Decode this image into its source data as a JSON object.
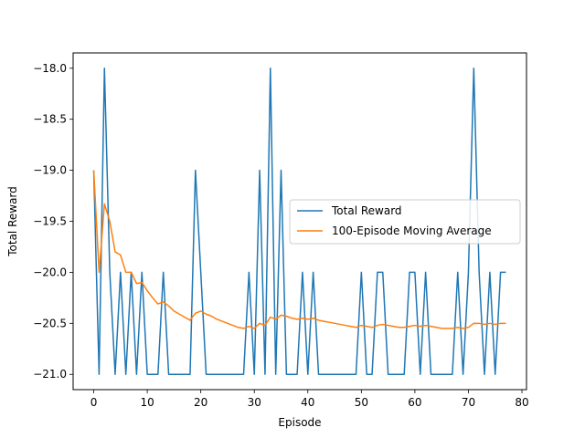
{
  "chart_data": {
    "type": "line",
    "xlabel": "Episode",
    "ylabel": "Total Reward",
    "xlim": [
      -3.85,
      80.85
    ],
    "ylim": [
      -21.15,
      -17.85
    ],
    "xticks": [
      0,
      10,
      20,
      30,
      40,
      50,
      60,
      70,
      80
    ],
    "yticks": [
      -21.0,
      -20.5,
      -20.0,
      -19.5,
      -19.0,
      -18.5,
      -18.0
    ],
    "ytick_labels": [
      "−21.0",
      "−20.5",
      "−20.0",
      "−19.5",
      "−19.0",
      "−18.5",
      "−18.0"
    ],
    "grid": false,
    "legend_position": "center-right",
    "series": [
      {
        "name": "Total Reward",
        "color": "#1f77b4",
        "x": [
          0,
          1,
          2,
          3,
          4,
          5,
          6,
          7,
          8,
          9,
          10,
          11,
          12,
          13,
          14,
          15,
          16,
          17,
          18,
          19,
          20,
          21,
          22,
          23,
          24,
          25,
          26,
          27,
          28,
          29,
          30,
          31,
          32,
          33,
          34,
          35,
          36,
          37,
          38,
          39,
          40,
          41,
          42,
          43,
          44,
          45,
          46,
          47,
          48,
          49,
          50,
          51,
          52,
          53,
          54,
          55,
          56,
          57,
          58,
          59,
          60,
          61,
          62,
          63,
          64,
          65,
          66,
          67,
          68,
          69,
          70,
          71,
          72,
          73,
          74,
          75,
          76,
          77
        ],
        "y": [
          -19,
          -21,
          -18,
          -20,
          -21,
          -20,
          -21,
          -20,
          -21,
          -20,
          -21,
          -21,
          -21,
          -20,
          -21,
          -21,
          -21,
          -21,
          -21,
          -19,
          -20,
          -21,
          -21,
          -21,
          -21,
          -21,
          -21,
          -21,
          -21,
          -20,
          -21,
          -19,
          -21,
          -18,
          -21,
          -19,
          -21,
          -21,
          -21,
          -20,
          -21,
          -20,
          -21,
          -21,
          -21,
          -21,
          -21,
          -21,
          -21,
          -21,
          -20,
          -21,
          -21,
          -20,
          -20,
          -21,
          -21,
          -21,
          -21,
          -20,
          -20,
          -21,
          -20,
          -21,
          -21,
          -21,
          -21,
          -21,
          -20,
          -21,
          -20,
          -18,
          -20,
          -21,
          -20,
          -21,
          -20,
          -20
        ]
      },
      {
        "name": "100-Episode Moving Average",
        "color": "#ff7f0e",
        "x": [
          0,
          1,
          2,
          3,
          4,
          5,
          6,
          7,
          8,
          9,
          10,
          11,
          12,
          13,
          14,
          15,
          16,
          17,
          18,
          19,
          20,
          21,
          22,
          23,
          24,
          25,
          26,
          27,
          28,
          29,
          30,
          31,
          32,
          33,
          34,
          35,
          36,
          37,
          38,
          39,
          40,
          41,
          42,
          43,
          44,
          45,
          46,
          47,
          48,
          49,
          50,
          51,
          52,
          53,
          54,
          55,
          56,
          57,
          58,
          59,
          60,
          61,
          62,
          63,
          64,
          65,
          66,
          67,
          68,
          69,
          70,
          71,
          72,
          73,
          74,
          75,
          76,
          77
        ],
        "y": [
          -19,
          -20,
          -19.33,
          -19.5,
          -19.8,
          -19.83,
          -20,
          -20,
          -20.11,
          -20.1,
          -20.18,
          -20.25,
          -20.31,
          -20.29,
          -20.33,
          -20.38,
          -20.41,
          -20.44,
          -20.47,
          -20.4,
          -20.38,
          -20.41,
          -20.43,
          -20.46,
          -20.48,
          -20.5,
          -20.52,
          -20.54,
          -20.55,
          -20.53,
          -20.55,
          -20.5,
          -20.52,
          -20.44,
          -20.46,
          -20.42,
          -20.43,
          -20.45,
          -20.46,
          -20.45,
          -20.46,
          -20.45,
          -20.47,
          -20.48,
          -20.49,
          -20.5,
          -20.51,
          -20.52,
          -20.53,
          -20.54,
          -20.52,
          -20.53,
          -20.54,
          -20.52,
          -20.51,
          -20.52,
          -20.53,
          -20.54,
          -20.54,
          -20.53,
          -20.52,
          -20.53,
          -20.52,
          -20.53,
          -20.54,
          -20.55,
          -20.55,
          -20.55,
          -20.54,
          -20.55,
          -20.54,
          -20.5,
          -20.5,
          -20.51,
          -20.5,
          -20.51,
          -20.5,
          -20.5
        ]
      }
    ]
  }
}
